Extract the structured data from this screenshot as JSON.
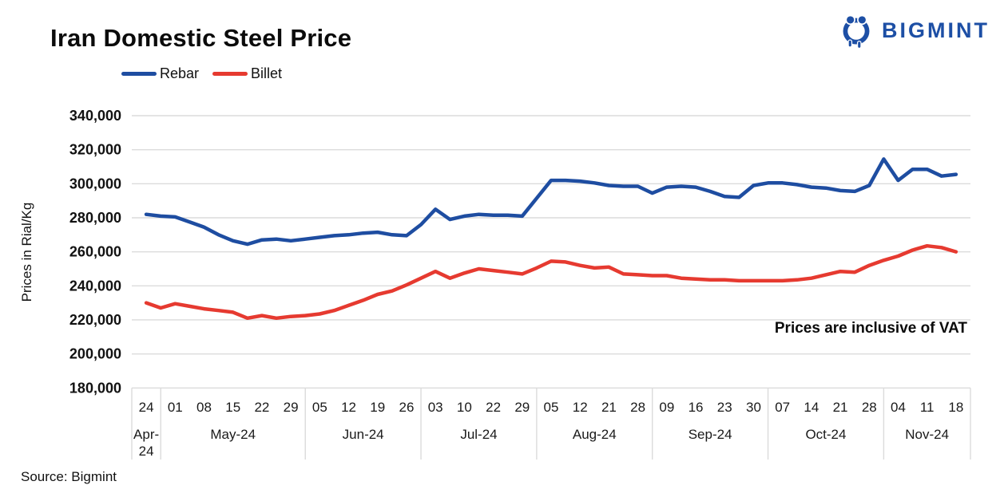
{
  "header": {
    "title": "Iran Domestic Steel Price",
    "logo_text": "BIGMINT"
  },
  "footer": {
    "source": "Source: Bigmint"
  },
  "colors": {
    "rebar_blue": "#1e4da1",
    "billet_red": "#e63a30",
    "grid_gray": "#dbdbdb",
    "logo_blue": "#1d4fa5",
    "text_black": "#111111"
  },
  "chart_data": {
    "type": "line",
    "title": "Iran Domestic Steel Price",
    "ylabel": "Prices in Rial/Kg",
    "annotation": "Prices are inclusive of VAT",
    "legend_position": "top-left",
    "grid": "horizontal",
    "y_axis": {
      "min": 180000,
      "max": 340000,
      "step": 20000,
      "tick_labels": [
        "180,000",
        "200,000",
        "220,000",
        "240,000",
        "260,000",
        "280,000",
        "300,000",
        "320,000",
        "340,000"
      ]
    },
    "x_axis": {
      "groups": [
        {
          "month": "Apr-24",
          "days": [
            "24"
          ]
        },
        {
          "month": "May-24",
          "days": [
            "01",
            "08",
            "15",
            "22",
            "29"
          ]
        },
        {
          "month": "Jun-24",
          "days": [
            "05",
            "12",
            "19",
            "26"
          ]
        },
        {
          "month": "Jul-24",
          "days": [
            "03",
            "10",
            "22",
            "29"
          ]
        },
        {
          "month": "Aug-24",
          "days": [
            "05",
            "12",
            "21",
            "28"
          ]
        },
        {
          "month": "Sep-24",
          "days": [
            "09",
            "16",
            "23",
            "30"
          ]
        },
        {
          "month": "Oct-24",
          "days": [
            "07",
            "14",
            "21",
            "28"
          ]
        },
        {
          "month": "Nov-24",
          "days": [
            "04",
            "11",
            "18"
          ]
        }
      ],
      "values_per_day_tick": 2
    },
    "series": [
      {
        "name": "Rebar",
        "color": "#1e4da1",
        "values": [
          282000,
          281000,
          280500,
          277500,
          274500,
          270000,
          266500,
          264500,
          267000,
          267500,
          266500,
          267500,
          268500,
          269500,
          270000,
          271000,
          271500,
          270000,
          269500,
          276000,
          285000,
          279000,
          281000,
          282000,
          281500,
          281500,
          281000,
          291500,
          302000,
          302000,
          301500,
          300500,
          299000,
          298500,
          298500,
          294500,
          298000,
          298500,
          298000,
          295500,
          292500,
          292000,
          299000,
          300500,
          300500,
          299500,
          298000,
          297500,
          296000,
          295500,
          299000,
          314500,
          302000,
          308500,
          308500,
          304500,
          305500
        ]
      },
      {
        "name": "Billet",
        "color": "#e63a30",
        "values": [
          230000,
          227000,
          229500,
          228000,
          226500,
          225500,
          224500,
          221000,
          222500,
          221000,
          222000,
          222500,
          223500,
          225500,
          228500,
          231500,
          235000,
          237000,
          240500,
          244500,
          248500,
          244500,
          247500,
          250000,
          249000,
          248000,
          247000,
          250500,
          254500,
          254000,
          252000,
          250500,
          251000,
          247000,
          246500,
          246000,
          246000,
          244500,
          244000,
          243500,
          243500,
          243000,
          243000,
          243000,
          243000,
          243500,
          244500,
          246500,
          248500,
          248000,
          252000,
          255000,
          257500,
          261000,
          263500,
          262500,
          260000
        ]
      }
    ]
  }
}
